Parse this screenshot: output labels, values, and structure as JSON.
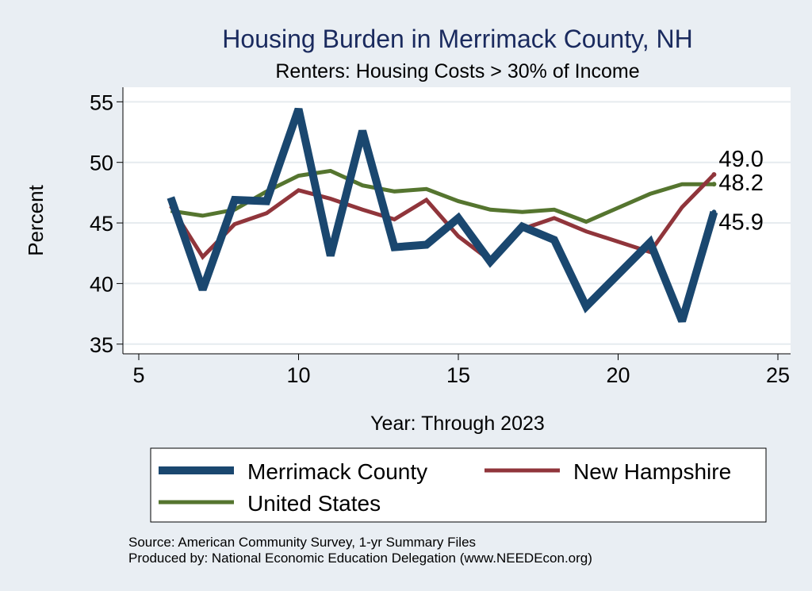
{
  "chart_data": {
    "type": "line",
    "title": "Housing Burden in Merrimack County, NH",
    "subtitle": "Renters: Housing Costs > 30% of Income",
    "xlabel": "Year: Through 2023",
    "ylabel": "Percent",
    "xlim": [
      5,
      25
    ],
    "ylim": [
      34.2,
      56.2
    ],
    "xticks": [
      5,
      10,
      15,
      20,
      25
    ],
    "yticks": [
      35,
      40,
      45,
      50,
      55
    ],
    "grid": true,
    "legend_position": "bottom",
    "x": [
      6,
      7,
      8,
      9,
      10,
      11,
      12,
      13,
      14,
      15,
      16,
      17,
      18,
      19,
      21,
      22,
      23
    ],
    "series": [
      {
        "name": "Merrimack County",
        "color": "#1a476f",
        "values": [
          47.1,
          39.5,
          46.9,
          46.8,
          54.4,
          42.3,
          52.6,
          43.0,
          43.2,
          45.4,
          41.8,
          44.7,
          43.6,
          38.1,
          43.4,
          36.9,
          45.9
        ],
        "end_label": "45.9"
      },
      {
        "name": "New Hampshire",
        "color": "#90353b",
        "values": [
          46.4,
          42.2,
          44.9,
          45.8,
          47.7,
          47.0,
          46.1,
          45.3,
          46.9,
          43.9,
          41.9,
          44.5,
          45.4,
          44.3,
          42.6,
          46.3,
          49.0
        ],
        "end_label": "49.0"
      },
      {
        "name": "United States",
        "color": "#55752f",
        "values": [
          46.0,
          45.6,
          46.1,
          47.6,
          48.9,
          49.3,
          48.1,
          47.6,
          47.8,
          46.8,
          46.1,
          45.9,
          46.1,
          45.1,
          47.4,
          48.2,
          48.2
        ],
        "end_label": "48.2"
      }
    ],
    "notes": [
      "Source: American Community Survey, 1-yr Summary Files",
      "Produced by: National Economic Education Delegation (www.NEEDEcon.org)"
    ]
  }
}
